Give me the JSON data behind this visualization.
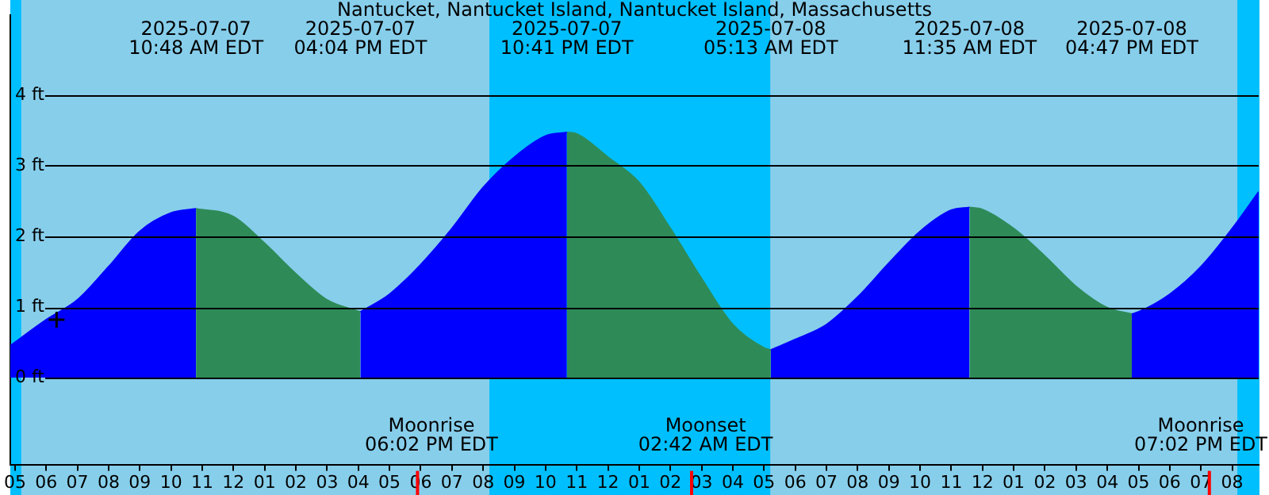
{
  "chart_data": {
    "type": "area",
    "title": "Nantucket, Nantucket Island, Nantucket Island, Massachusetts",
    "xlim": [
      "2025-07-07T04:51",
      "2025-07-08T20:51"
    ],
    "xticks": [
      {
        "value": "2025-07-07T05:00",
        "label": "05"
      },
      {
        "value": "2025-07-07T06:00",
        "label": "06"
      },
      {
        "value": "2025-07-07T07:00",
        "label": "07"
      },
      {
        "value": "2025-07-07T08:00",
        "label": "08"
      },
      {
        "value": "2025-07-07T09:00",
        "label": "09"
      },
      {
        "value": "2025-07-07T10:00",
        "label": "10"
      },
      {
        "value": "2025-07-07T11:00",
        "label": "11"
      },
      {
        "value": "2025-07-07T12:00",
        "label": "12"
      },
      {
        "value": "2025-07-07T13:00",
        "label": "01"
      },
      {
        "value": "2025-07-07T14:00",
        "label": "02"
      },
      {
        "value": "2025-07-07T15:00",
        "label": "03"
      },
      {
        "value": "2025-07-07T16:00",
        "label": "04"
      },
      {
        "value": "2025-07-07T17:00",
        "label": "05"
      },
      {
        "value": "2025-07-07T18:00",
        "label": "06"
      },
      {
        "value": "2025-07-07T19:00",
        "label": "07"
      },
      {
        "value": "2025-07-07T20:00",
        "label": "08"
      },
      {
        "value": "2025-07-07T21:00",
        "label": "09"
      },
      {
        "value": "2025-07-07T22:00",
        "label": "10"
      },
      {
        "value": "2025-07-07T23:00",
        "label": "11"
      },
      {
        "value": "2025-07-08T00:00",
        "label": "12"
      },
      {
        "value": "2025-07-08T01:00",
        "label": "01"
      },
      {
        "value": "2025-07-08T02:00",
        "label": "02"
      },
      {
        "value": "2025-07-08T03:00",
        "label": "03"
      },
      {
        "value": "2025-07-08T04:00",
        "label": "04"
      },
      {
        "value": "2025-07-08T05:00",
        "label": "05"
      },
      {
        "value": "2025-07-08T06:00",
        "label": "06"
      },
      {
        "value": "2025-07-08T07:00",
        "label": "07"
      },
      {
        "value": "2025-07-08T08:00",
        "label": "08"
      },
      {
        "value": "2025-07-08T09:00",
        "label": "09"
      },
      {
        "value": "2025-07-08T10:00",
        "label": "10"
      },
      {
        "value": "2025-07-08T11:00",
        "label": "11"
      },
      {
        "value": "2025-07-08T12:00",
        "label": "12"
      },
      {
        "value": "2025-07-08T13:00",
        "label": "01"
      },
      {
        "value": "2025-07-08T14:00",
        "label": "02"
      },
      {
        "value": "2025-07-08T15:00",
        "label": "03"
      },
      {
        "value": "2025-07-08T16:00",
        "label": "04"
      },
      {
        "value": "2025-07-08T17:00",
        "label": "05"
      },
      {
        "value": "2025-07-08T18:00",
        "label": "06"
      },
      {
        "value": "2025-07-08T19:00",
        "label": "07"
      },
      {
        "value": "2025-07-08T20:00",
        "label": "08"
      }
    ],
    "ylim": [
      -1.23,
      5.13
    ],
    "yticks": [
      {
        "value": 0,
        "label": "0 ft"
      },
      {
        "value": 1,
        "label": "1 ft"
      },
      {
        "value": 2,
        "label": "2 ft"
      },
      {
        "value": 3,
        "label": "3 ft"
      },
      {
        "value": 4,
        "label": "4 ft"
      }
    ],
    "grid": "y",
    "legend": false,
    "series": [
      {
        "color": "#0000ff",
        "x": [
          "2025-07-07T04:51",
          "2025-07-07T05:00",
          "2025-07-07T06:00",
          "2025-07-07T07:00",
          "2025-07-07T08:00",
          "2025-07-07T09:00",
          "2025-07-07T10:00",
          "2025-07-07T10:48",
          "2025-07-07T13:00",
          "2025-07-07T16:04",
          "2025-07-07T17:00",
          "2025-07-07T18:00",
          "2025-07-07T19:00",
          "2025-07-07T20:00",
          "2025-07-07T21:00",
          "2025-07-07T22:00",
          "2025-07-07T22:41",
          "2025-07-08T02:00",
          "2025-07-08T05:13",
          "2025-07-08T06:00",
          "2025-07-08T07:00",
          "2025-07-08T08:00",
          "2025-07-08T09:00",
          "2025-07-08T10:00",
          "2025-07-08T11:00",
          "2025-07-08T11:35",
          "2025-07-08T14:00",
          "2025-07-08T16:47",
          "2025-07-08T17:00",
          "2025-07-08T18:00",
          "2025-07-08T19:00",
          "2025-07-08T20:00",
          "2025-07-08T20:51"
        ],
        "values": [
          0.45,
          0.5,
          0.82,
          1.1,
          1.57,
          2.07,
          2.33,
          2.39,
          null,
          0.93,
          1.18,
          1.6,
          2.11,
          2.69,
          3.12,
          3.42,
          3.47,
          null,
          0.39,
          0.54,
          0.75,
          1.14,
          1.62,
          2.07,
          2.37,
          2.41,
          null,
          0.9,
          0.93,
          1.18,
          1.57,
          2.11,
          2.63
        ]
      },
      {
        "color": "#2e8b57",
        "x": [
          "2025-07-07T10:48",
          "2025-07-07T12:00",
          "2025-07-07T13:00",
          "2025-07-07T14:00",
          "2025-07-07T15:00",
          "2025-07-07T16:04",
          "2025-07-07T19:00",
          "2025-07-07T22:41",
          "2025-07-07T23:00",
          "2025-07-08T00:00",
          "2025-07-08T01:00",
          "2025-07-08T02:00",
          "2025-07-08T03:00",
          "2025-07-08T04:00",
          "2025-07-08T05:00",
          "2025-07-08T05:13",
          "2025-07-08T09:00",
          "2025-07-08T11:35",
          "2025-07-08T12:00",
          "2025-07-08T13:00",
          "2025-07-08T14:00",
          "2025-07-08T15:00",
          "2025-07-08T16:00",
          "2025-07-08T16:47"
        ],
        "values": [
          2.39,
          2.28,
          1.9,
          1.47,
          1.1,
          0.93,
          null,
          3.47,
          3.45,
          3.12,
          2.76,
          2.11,
          1.4,
          0.75,
          0.42,
          0.39,
          null,
          2.41,
          2.38,
          2.11,
          1.72,
          1.29,
          0.99,
          0.9
        ]
      },
      {
        "type": "scatter",
        "color": "#000000",
        "marker": "cross",
        "x": [
          "2025-07-07T06:20"
        ],
        "values": [
          0.82
        ]
      }
    ],
    "bands": [
      {
        "axis": "x",
        "from": "2025-07-07T04:51",
        "to": "2025-07-07T05:12",
        "color": "#00bfff"
      },
      {
        "axis": "x",
        "from": "2025-07-07T05:12",
        "to": "2025-07-07T20:12",
        "color": "#87ceeb"
      },
      {
        "axis": "x",
        "from": "2025-07-07T20:12",
        "to": "2025-07-08T05:12",
        "color": "#00bfff"
      },
      {
        "axis": "x",
        "from": "2025-07-08T05:12",
        "to": "2025-07-08T20:10",
        "color": "#87ceeb"
      },
      {
        "axis": "x",
        "from": "2025-07-08T20:10",
        "to": "2025-07-08T20:51",
        "color": "#00bfff"
      }
    ],
    "annotations": [
      "2025-07-07\n10:48 AM EDT",
      "2025-07-07\n04:04 PM EDT",
      "2025-07-07\n10:41 PM EDT",
      "2025-07-08\n05:13 AM EDT",
      "2025-07-08\n11:35 AM EDT",
      "2025-07-08\n04:47 PM EDT",
      "Moonrise\n06:02 PM EDT",
      "Moonset\n02:42 AM EDT",
      "Moonrise\n07:02 PM EDT"
    ]
  }
}
